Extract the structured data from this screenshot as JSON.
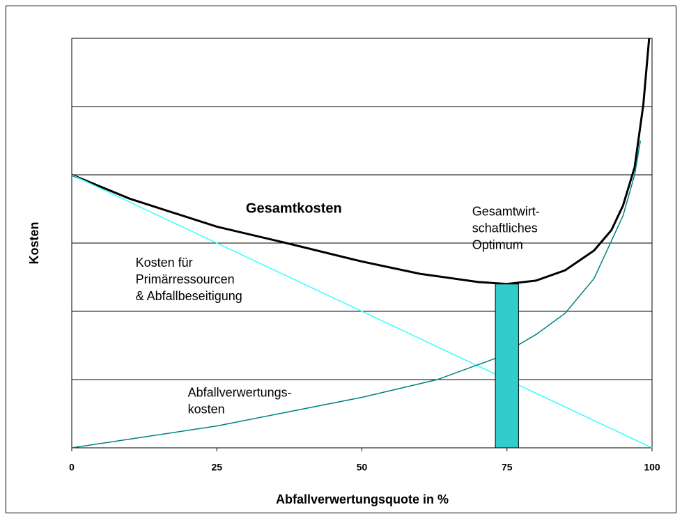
{
  "chart_data": {
    "type": "line",
    "xlabel": "Abfallverwertungsquote in %",
    "ylabel": "Kosten",
    "xlim": [
      0,
      100
    ],
    "xticks": [
      0,
      25,
      50,
      75,
      100
    ],
    "ylim": [
      0,
      6
    ],
    "yticks": [
      0,
      1,
      2,
      3,
      4,
      5,
      6
    ],
    "grid": true,
    "series": [
      {
        "name": "Gesamtkosten",
        "color": "#000000",
        "width": 3,
        "x": [
          0,
          10,
          25,
          37,
          50,
          60,
          70,
          75,
          80,
          85,
          90,
          93,
          95,
          97,
          98.5,
          99.5
        ],
        "values": [
          4.0,
          3.65,
          3.24,
          3.0,
          2.73,
          2.55,
          2.43,
          2.4,
          2.45,
          2.6,
          2.89,
          3.19,
          3.55,
          4.11,
          5.03,
          6.0
        ]
      },
      {
        "name": "Kosten für Primärressourcen & Abfallbeseitigung",
        "color": "#33ffff",
        "width": 1.5,
        "x": [
          0,
          100
        ],
        "values": [
          4.0,
          0
        ]
      },
      {
        "name": "Abfallverwertungskosten",
        "color": "#008080",
        "width": 1.5,
        "x": [
          0,
          25,
          50,
          63,
          73,
          80,
          85,
          90,
          95,
          97,
          98
        ],
        "values": [
          0,
          0.32,
          0.74,
          1.0,
          1.31,
          1.66,
          1.97,
          2.48,
          3.4,
          4.0,
          4.5
        ]
      }
    ],
    "optimum": {
      "x": [
        73,
        77
      ],
      "value": 2.4,
      "color": "#33cccc"
    },
    "annotations": [
      {
        "lines": [
          "Gesamtkosten"
        ],
        "x": 30,
        "y": 3.5,
        "bold": true
      },
      {
        "lines": [
          "Kosten für",
          "Primärressourcen",
          "& Abfallbeseitigung"
        ],
        "x": 11,
        "y": 2.7
      },
      {
        "lines": [
          "Abfallverwertungs-",
          "kosten"
        ],
        "x": 20,
        "y": 0.8
      },
      {
        "lines": [
          "Gesamtwirt-",
          "schaftliches",
          "Optimum"
        ],
        "x": 69,
        "y": 3.45
      }
    ]
  }
}
